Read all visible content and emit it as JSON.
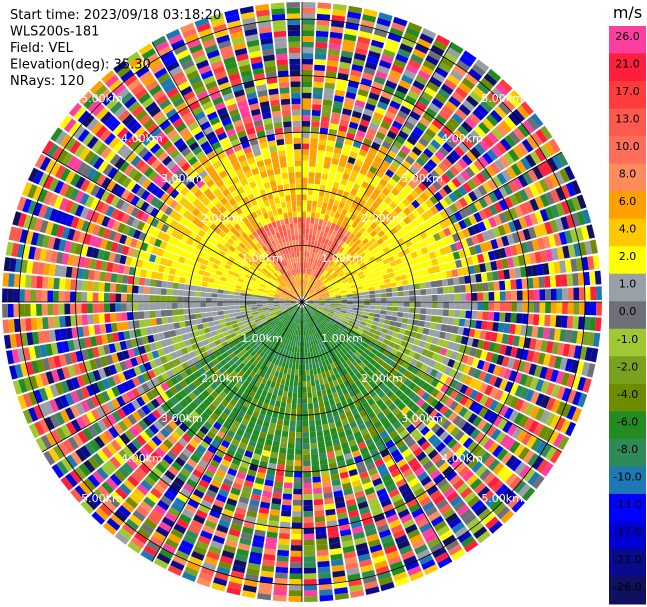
{
  "header": {
    "lines": [
      "Start time: 2023/09/18 03:18:20",
      "WLS200s-181",
      "Field: VEL",
      "Elevation(deg): 35.30",
      "NRays: 120"
    ]
  },
  "chart_data": {
    "type": "heatmap",
    "projection": "polar-ppi",
    "field": "VEL",
    "unit": "m/s",
    "nrays": 120,
    "elevation_deg": 35.3,
    "range_rings_km": [
      1.0,
      2.0,
      3.0,
      4.0,
      5.0
    ],
    "ring_labels": [
      "1.00km",
      "2.00km",
      "3.00km",
      "4.00km",
      "5.00km"
    ],
    "max_range_km": 5.3,
    "colorbar": {
      "ticks": [
        "26.0",
        "21.0",
        "17.0",
        "13.0",
        "10.0",
        "8.0",
        "6.0",
        "4.0",
        "2.0",
        "1.0",
        "0.0",
        "-1.0",
        "-2.0",
        "-4.0",
        "-6.0",
        "-8.0",
        "-10.0",
        "-13.0",
        "-17.0",
        "-21.0",
        "-26.0",
        "-30.0"
      ],
      "colors": [
        "#ff3fa0",
        "#ff1e3c",
        "#ff3c3c",
        "#ff5a4e",
        "#ff6e5a",
        "#ff8c5a",
        "#ffa000",
        "#ffc800",
        "#ffff00",
        "#9aa0a8",
        "#6e7078",
        "#a0c832",
        "#7aa21e",
        "#6e8c00",
        "#228b22",
        "#2e8b57",
        "#1e78b4",
        "#0000ff",
        "#0000d2",
        "#0a0a8c",
        "#101060"
      ]
    },
    "velocity_field": {
      "positive_sector": "north (toward top, up to 3 km)",
      "negative_sector": "south (toward bottom, up to 3 km)",
      "near_zero_bands": "east-west axis",
      "beyond_3km": "noise (random colors)"
    }
  }
}
